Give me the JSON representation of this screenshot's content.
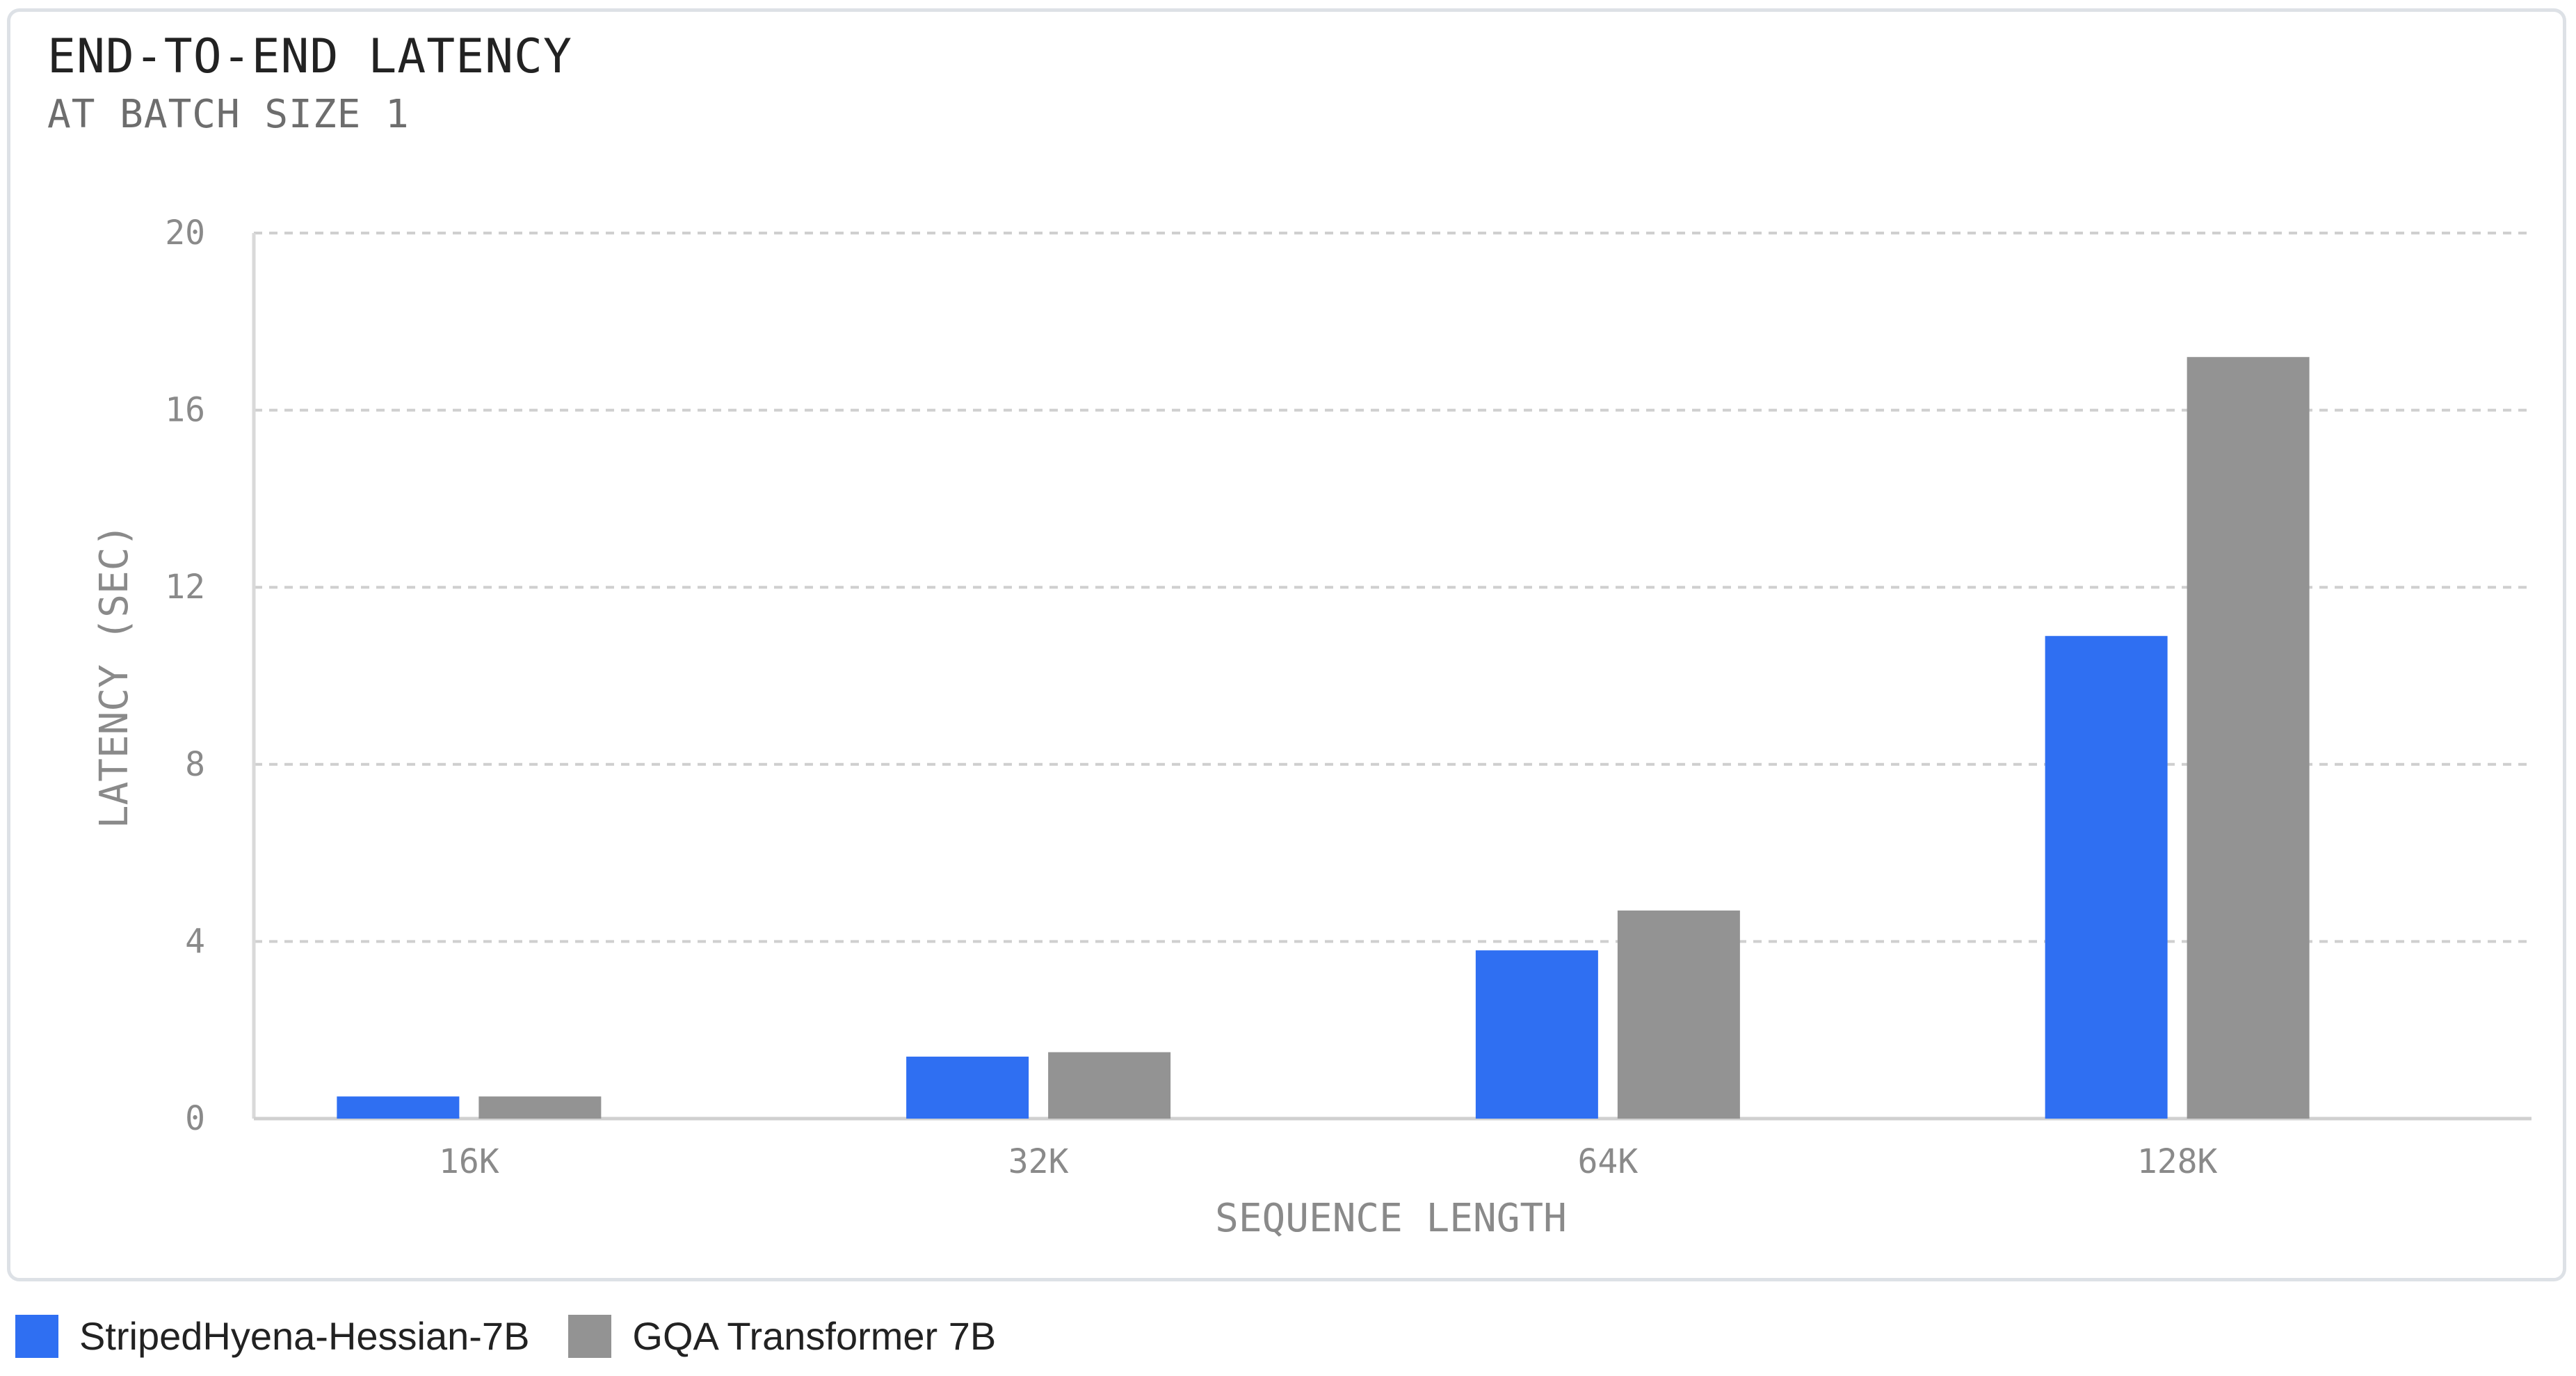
{
  "chart": {
    "title": "END-TO-END LATENCY",
    "subtitle": "AT BATCH SIZE 1"
  },
  "chart_data": {
    "type": "bar",
    "title": "END-TO-END LATENCY",
    "subtitle": "AT BATCH SIZE 1",
    "xlabel": "SEQUENCE LENGTH",
    "ylabel": "LATENCY (SEC)",
    "categories": [
      "16K",
      "32K",
      "64K",
      "128K"
    ],
    "ylim": [
      0,
      20
    ],
    "yticks": [
      "0",
      "4",
      "8",
      "12",
      "16",
      "20"
    ],
    "grid": true,
    "legend_position": "bottom-left",
    "series": [
      {
        "name": "StripedHyena-Hessian-7B",
        "color": "#2f6ff2",
        "values": [
          0.5,
          1.4,
          3.8,
          10.9
        ]
      },
      {
        "name": "GQA Transformer 7B",
        "color": "#939393",
        "values": [
          0.5,
          1.5,
          4.7,
          17.2
        ]
      }
    ]
  }
}
